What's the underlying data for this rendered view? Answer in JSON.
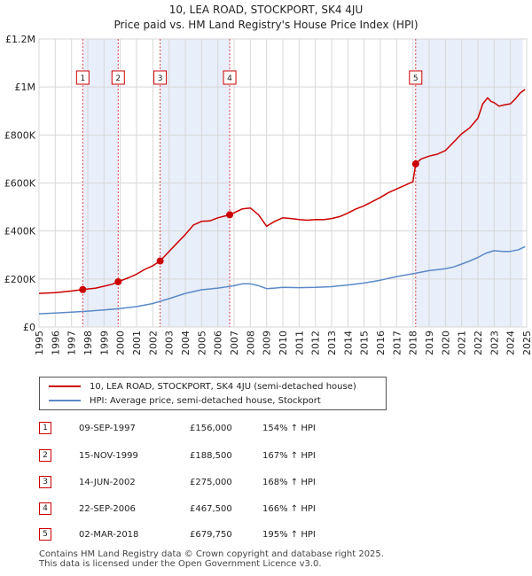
{
  "header": {
    "title": "10, LEA ROAD, STOCKPORT, SK4 4JU",
    "subtitle": "Price paid vs. HM Land Registry's House Price Index (HPI)"
  },
  "colors": {
    "property": "#cc0000",
    "hpi": "#5b8ac7",
    "shade": "#e8eefa",
    "grid": "#d7d7d7",
    "vline": "#dd4444"
  },
  "chart_data": {
    "type": "line",
    "xlim": [
      1995,
      2025
    ],
    "ylim": [
      0,
      1200000
    ],
    "yticks": [
      0,
      200000,
      400000,
      600000,
      800000,
      1000000,
      1200000
    ],
    "ytick_labels": [
      "£0",
      "£200K",
      "£400K",
      "£600K",
      "£800K",
      "£1M",
      "£1.2M"
    ],
    "xticks": [
      "1995",
      "1996",
      "1997",
      "1998",
      "1999",
      "2000",
      "2001",
      "2002",
      "2003",
      "2004",
      "2005",
      "2006",
      "2007",
      "2008",
      "2009",
      "2010",
      "2011",
      "2012",
      "2013",
      "2014",
      "2015",
      "2016",
      "2017",
      "2018",
      "2019",
      "2020",
      "2021",
      "2022",
      "2023",
      "2024",
      "2025"
    ],
    "shaded_ranges": [
      [
        1997.69,
        1999.87
      ],
      [
        2002.45,
        2006.73
      ],
      [
        2018.17,
        2024.75
      ]
    ],
    "series": [
      {
        "name": "10, LEA ROAD, STOCKPORT, SK4 4JU (semi-detached house)",
        "x": [
          1995.0,
          1996.0,
          1997.0,
          1997.69,
          1998.5,
          1999.5,
          1999.87,
          2000.5,
          2001.0,
          2001.5,
          2002.0,
          2002.45,
          2003.0,
          2003.5,
          2004.0,
          2004.5,
          2005.0,
          2005.5,
          2006.0,
          2006.73,
          2007.5,
          2008.0,
          2008.5,
          2009.0,
          2009.5,
          2010.0,
          2010.5,
          2011.0,
          2011.5,
          2012.0,
          2012.5,
          2013.0,
          2013.5,
          2014.0,
          2014.5,
          2015.0,
          2015.5,
          2016.0,
          2016.5,
          2017.0,
          2017.5,
          2018.0,
          2018.17,
          2018.5,
          2019.0,
          2019.5,
          2020.0,
          2020.5,
          2021.0,
          2021.5,
          2022.0,
          2022.3,
          2022.6,
          2022.8,
          2023.0,
          2023.3,
          2023.6,
          2024.0,
          2024.3,
          2024.6,
          2024.9
        ],
        "y": [
          140000,
          143000,
          150000,
          156000,
          162000,
          178000,
          188500,
          205000,
          220000,
          240000,
          255000,
          275000,
          315000,
          350000,
          385000,
          425000,
          440000,
          442000,
          455000,
          467500,
          492000,
          496000,
          468000,
          420000,
          440000,
          455000,
          452000,
          448000,
          445000,
          448000,
          447000,
          452000,
          460000,
          475000,
          492000,
          505000,
          522000,
          540000,
          560000,
          575000,
          590000,
          605000,
          679750,
          700000,
          712000,
          720000,
          735000,
          770000,
          805000,
          830000,
          870000,
          930000,
          955000,
          940000,
          935000,
          920000,
          925000,
          930000,
          950000,
          975000,
          990000
        ]
      },
      {
        "name": "HPI: Average price, semi-detached house, Stockport",
        "x": [
          1995.0,
          1996.0,
          1997.0,
          1998.0,
          1999.0,
          2000.0,
          2001.0,
          2002.0,
          2003.0,
          2004.0,
          2005.0,
          2006.0,
          2007.0,
          2007.5,
          2008.0,
          2008.5,
          2009.0,
          2009.5,
          2010.0,
          2011.0,
          2012.0,
          2013.0,
          2014.0,
          2015.0,
          2016.0,
          2017.0,
          2018.0,
          2019.0,
          2020.0,
          2020.5,
          2021.0,
          2021.5,
          2022.0,
          2022.5,
          2023.0,
          2023.5,
          2024.0,
          2024.5,
          2024.9
        ],
        "y": [
          55000,
          58000,
          62000,
          66000,
          71000,
          77000,
          85000,
          98000,
          118000,
          140000,
          155000,
          162000,
          172000,
          180000,
          180000,
          172000,
          160000,
          162000,
          165000,
          164000,
          165000,
          168000,
          175000,
          183000,
          195000,
          210000,
          222000,
          235000,
          243000,
          250000,
          262000,
          275000,
          290000,
          308000,
          318000,
          315000,
          315000,
          322000,
          335000
        ]
      }
    ],
    "sales": [
      {
        "num": "1",
        "x": 1997.69,
        "y": 156000
      },
      {
        "num": "2",
        "x": 1999.87,
        "y": 188500
      },
      {
        "num": "3",
        "x": 2002.45,
        "y": 275000
      },
      {
        "num": "4",
        "x": 2006.73,
        "y": 467500
      },
      {
        "num": "5",
        "x": 2018.17,
        "y": 679750
      }
    ]
  },
  "legend": {
    "property_label": "10, LEA ROAD, STOCKPORT, SK4 4JU (semi-detached house)",
    "hpi_label": "HPI: Average price, semi-detached house, Stockport"
  },
  "sales_table": [
    {
      "num": "1",
      "date": "09-SEP-1997",
      "price": "£156,000",
      "hpi": "154% ↑ HPI"
    },
    {
      "num": "2",
      "date": "15-NOV-1999",
      "price": "£188,500",
      "hpi": "167% ↑ HPI"
    },
    {
      "num": "3",
      "date": "14-JUN-2002",
      "price": "£275,000",
      "hpi": "168% ↑ HPI"
    },
    {
      "num": "4",
      "date": "22-SEP-2006",
      "price": "£467,500",
      "hpi": "166% ↑ HPI"
    },
    {
      "num": "5",
      "date": "02-MAR-2018",
      "price": "£679,750",
      "hpi": "195% ↑ HPI"
    }
  ],
  "footer": {
    "line1": "Contains HM Land Registry data © Crown copyright and database right 2025.",
    "line2": "This data is licensed under the Open Government Licence v3.0."
  }
}
